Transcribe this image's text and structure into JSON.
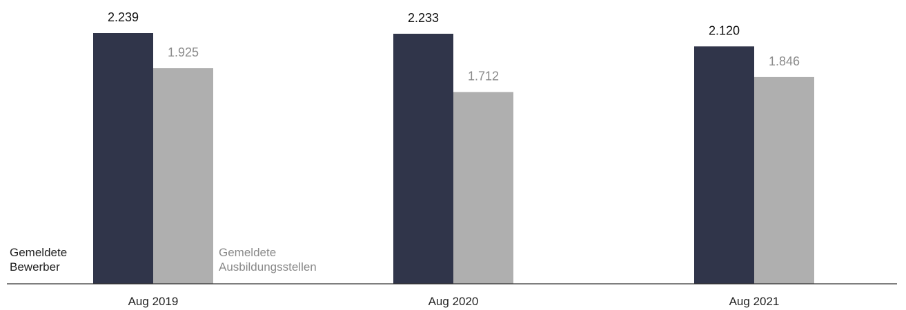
{
  "chart_data": {
    "type": "bar",
    "categories": [
      "Aug 2019",
      "Aug 2020",
      "Aug 2021"
    ],
    "series": [
      {
        "name": "Gemeldete Bewerber",
        "label_lines": [
          "Gemeldete",
          "Bewerber"
        ],
        "values": [
          2239,
          2233,
          2120
        ],
        "value_labels": [
          "2.239",
          "2.233",
          "2.120"
        ],
        "color": "#30354a"
      },
      {
        "name": "Gemeldete Ausbildungsstellen",
        "label_lines": [
          "Gemeldete",
          "Ausbildungsstellen"
        ],
        "values": [
          1925,
          1712,
          1846
        ],
        "value_labels": [
          "1.925",
          "1.712",
          "1.846"
        ],
        "color": "#afafaf"
      }
    ],
    "ylim": [
      0,
      2300
    ],
    "grid": false,
    "legend": "inline-bottom-left",
    "label_colors": {
      "values_primary": "#111111",
      "values_secondary": "#8a8a8a",
      "axis": "#222222"
    }
  }
}
